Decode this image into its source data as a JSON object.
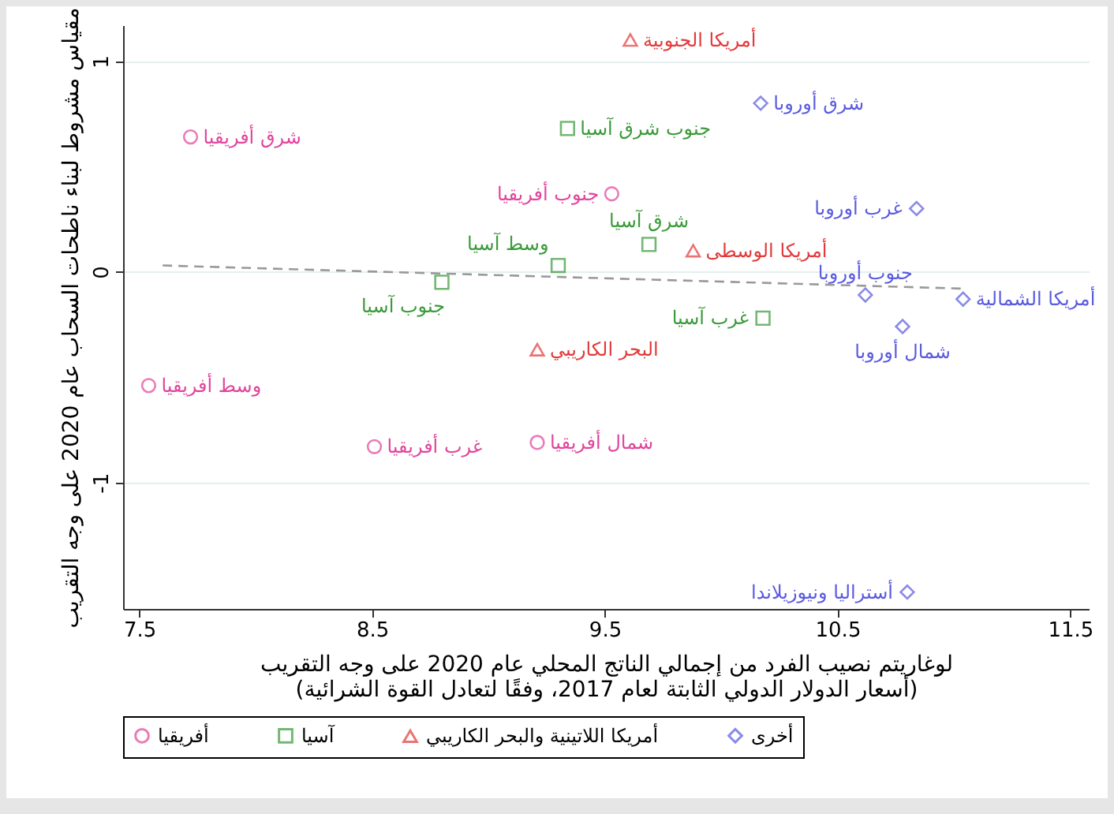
{
  "chart_data": {
    "type": "scatter",
    "xlabel": "لوغاريتم نصيب الفرد من إجمالي الناتج المحلي عام 2020 على وجه التقريب\n(أسعار الدولار الدولي الثابتة لعام 2017، وفقًا لتعادل القوة الشرائية)",
    "ylabel": "مقياس مشروط لبناء ناطحات السحاب عام 2020 على وجه التقريب",
    "xlim": [
      7.43,
      11.58
    ],
    "ylim": [
      -1.6,
      1.17
    ],
    "xticks": [
      7.5,
      8.5,
      9.5,
      10.5,
      11.5
    ],
    "yticks": [
      -1,
      0,
      1
    ],
    "grid": "y",
    "legend": "bottom",
    "series": [
      {
        "name": "أفريقيا",
        "color": "#e0459c",
        "marker": "circle",
        "x": [
          7.72,
          7.54,
          8.51,
          9.53,
          9.21
        ],
        "values": [
          0.64,
          -0.54,
          -0.83,
          0.37,
          -0.81
        ]
      },
      {
        "name": "آسيا",
        "color": "#3a9a3a",
        "marker": "square",
        "x": [
          8.8,
          9.3,
          9.34,
          9.69,
          10.18
        ],
        "values": [
          -0.05,
          0.03,
          0.68,
          0.13,
          -0.22
        ]
      },
      {
        "name": "أمريكا اللاتينية والبحر الكاريبي",
        "color": "#e23a3a",
        "marker": "triangle",
        "x": [
          9.61,
          9.88,
          9.21
        ],
        "values": [
          1.1,
          0.1,
          -0.37
        ]
      },
      {
        "name": "أخرى",
        "color": "#5a5ae0",
        "marker": "diamond",
        "x": [
          10.17,
          10.84,
          10.62,
          10.78,
          11.04,
          10.8
        ],
        "values": [
          0.8,
          0.3,
          -0.11,
          -0.26,
          -0.13,
          -1.52
        ]
      },
      {
        "type": "line",
        "color": "#999999",
        "line_style": "dashed",
        "marker": "none",
        "x": [
          7.6,
          11.04
        ],
        "values": [
          0.03,
          -0.08
        ]
      }
    ],
    "annotations": [
      {
        "text": "شرق أفريقيا",
        "x": 7.72,
        "y": 0.64
      },
      {
        "text": "وسط أفريقيا",
        "x": 7.54,
        "y": -0.54
      },
      {
        "text": "غرب أفريقيا",
        "x": 8.51,
        "y": -0.83
      },
      {
        "text": "جنوب أفريقيا",
        "x": 9.53,
        "y": 0.37
      },
      {
        "text": "شمال أفريقيا",
        "x": 9.21,
        "y": -0.81
      },
      {
        "text": "جنوب آسيا",
        "x": 8.8,
        "y": -0.05
      },
      {
        "text": "وسط آسيا",
        "x": 9.3,
        "y": 0.03
      },
      {
        "text": "جنوب شرق آسيا",
        "x": 9.34,
        "y": 0.68
      },
      {
        "text": "شرق آسيا",
        "x": 9.69,
        "y": 0.13
      },
      {
        "text": "غرب آسيا",
        "x": 10.18,
        "y": -0.22
      },
      {
        "text": "أمريكا الجنوبية",
        "x": 9.61,
        "y": 1.1
      },
      {
        "text": "أمريكا الوسطى",
        "x": 9.88,
        "y": 0.1
      },
      {
        "text": "البحر الكاريبي",
        "x": 9.21,
        "y": -0.37
      },
      {
        "text": "شرق أوروبا",
        "x": 10.17,
        "y": 0.8
      },
      {
        "text": "غرب أوروبا",
        "x": 10.84,
        "y": 0.3
      },
      {
        "text": "جنوب أوروبا",
        "x": 10.62,
        "y": -0.11
      },
      {
        "text": "شمال أوروبا",
        "x": 10.78,
        "y": -0.26
      },
      {
        "text": "أمريكا الشمالية",
        "x": 11.04,
        "y": -0.13
      },
      {
        "text": "أستراليا ونيوزيلاندا",
        "x": 10.8,
        "y": -1.52
      }
    ]
  }
}
